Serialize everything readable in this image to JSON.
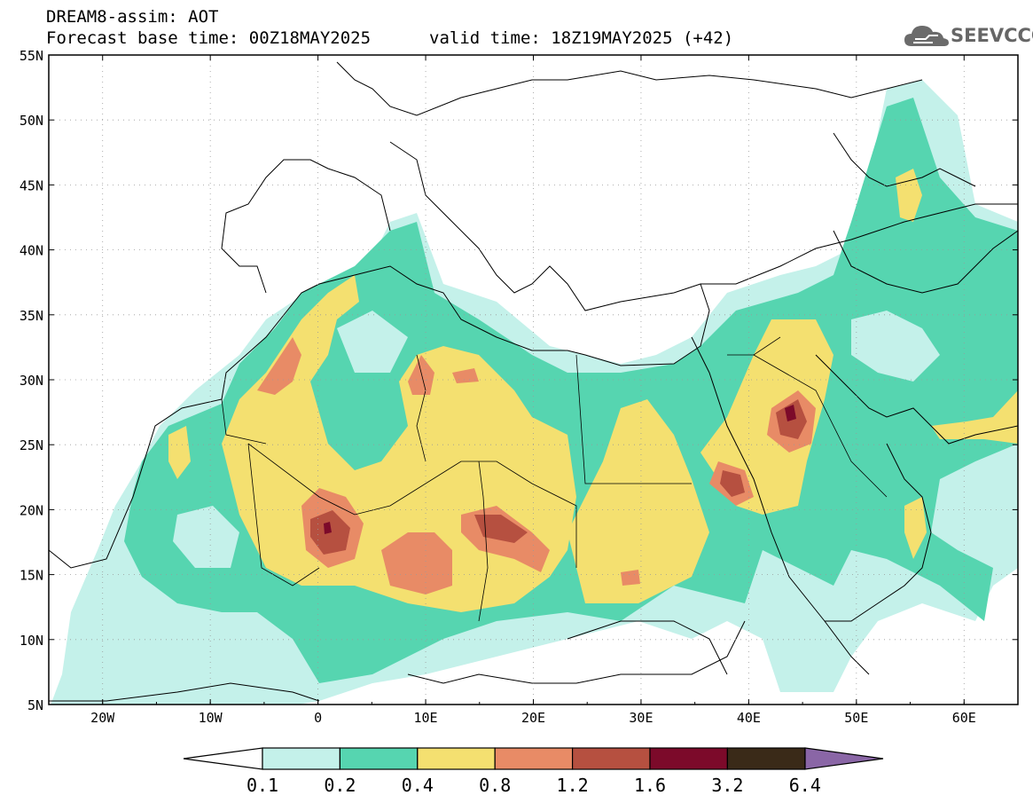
{
  "header": {
    "title_line1": "DREAM8-assim: AOT",
    "title_line2": "Forecast base time: 00Z18MAY2025",
    "valid_time": "valid time: 18Z19MAY2025 (+42)",
    "logo_text": "SEEVCCC"
  },
  "map": {
    "lat_labels": [
      "55N",
      "50N",
      "45N",
      "40N",
      "35N",
      "30N",
      "25N",
      "20N",
      "15N",
      "10N",
      "5N"
    ],
    "lon_labels": [
      "20W",
      "10W",
      "0",
      "10E",
      "20E",
      "30E",
      "40E",
      "50E",
      "60E"
    ],
    "lat_range": [
      5,
      55
    ],
    "lon_range": [
      -25,
      65
    ],
    "variable": "AOT"
  },
  "colorbar": {
    "labels": [
      "0.1",
      "0.2",
      "0.4",
      "0.8",
      "1.2",
      "1.6",
      "3.2",
      "6.4"
    ],
    "colors": [
      "#c4f1ea",
      "#56d5b0",
      "#f4e070",
      "#e88b66",
      "#b65040",
      "#7c0a2a",
      "#3a2a18",
      "#8a66a6"
    ]
  }
}
